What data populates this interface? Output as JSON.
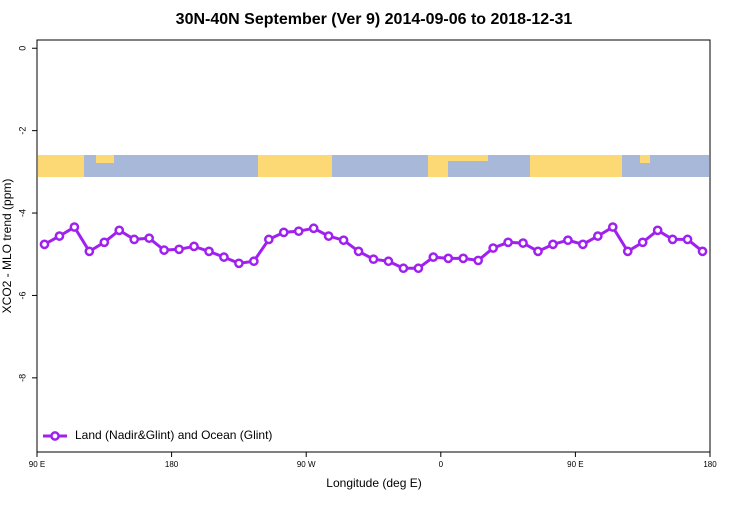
{
  "chart_data": {
    "type": "line",
    "title": "30N-40N September (Ver 9)   2014-09-06 to 2018-12-31",
    "x_label": "Longitude (deg E)",
    "y_label": "XCO2 - MLO trend (ppm)",
    "x": [
      95,
      105,
      115,
      125,
      135,
      145,
      155,
      165,
      175,
      185,
      195,
      205,
      215,
      225,
      235,
      245,
      255,
      265,
      275,
      285,
      295,
      305,
      315,
      325,
      335,
      345,
      355,
      365,
      375,
      385,
      395,
      405,
      415,
      425,
      435,
      445,
      455,
      465,
      475,
      485,
      495,
      505,
      515,
      525,
      535
    ],
    "series": [
      {
        "name": "Land (Nadir&Glint) and Ocean (Glint)",
        "color": "#a020f0",
        "values": [
          -4.76,
          -4.56,
          -4.34,
          -4.93,
          -4.71,
          -4.42,
          -4.64,
          -4.61,
          -4.9,
          -4.88,
          -4.81,
          -4.93,
          -5.07,
          -5.22,
          -5.17,
          -4.64,
          -4.47,
          -4.44,
          -4.37,
          -4.56,
          -4.66,
          -4.93,
          -5.12,
          -5.17,
          -5.34,
          -5.34,
          -5.07,
          -5.1,
          -5.1,
          -5.15,
          -4.85,
          -4.71,
          -4.73,
          -4.93,
          -4.76,
          -4.66,
          -4.76,
          -4.56,
          -4.34,
          -4.93,
          -4.71,
          -4.42,
          -4.64,
          -4.64,
          -4.93
        ]
      }
    ],
    "xlim": [
      90,
      540
    ],
    "xticks": [
      {
        "value": 90,
        "label": "90 E"
      },
      180,
      {
        "value": 270,
        "label": "90 W"
      },
      {
        "value": 360,
        "label": "0"
      },
      {
        "value": 450,
        "label": "90 E"
      },
      {
        "value": 540,
        "label": "180"
      }
    ],
    "ylim": [
      -9.8,
      0.2
    ],
    "yticks": [
      0,
      -2,
      -4,
      -6,
      -8
    ],
    "legend": "bottom-left"
  }
}
